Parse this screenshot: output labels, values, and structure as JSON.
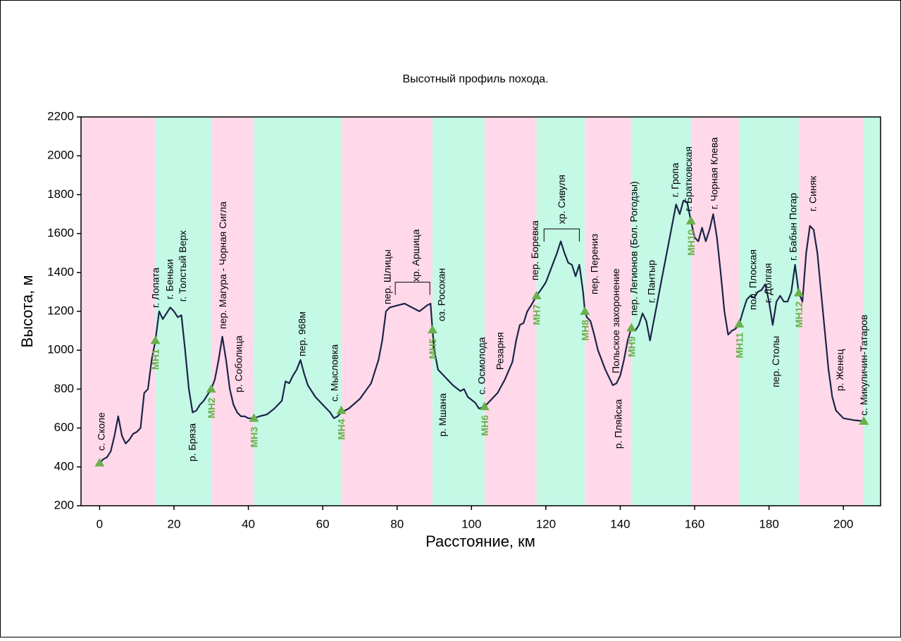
{
  "chart_data": {
    "type": "line",
    "title": "Высотный профиль похода.",
    "xlabel": "Расстояние, км",
    "ylabel": "Высота, м",
    "xlim": [
      -5,
      210
    ],
    "ylim": [
      200,
      2200
    ],
    "xticks": [
      0,
      20,
      40,
      60,
      80,
      100,
      120,
      140,
      160,
      180,
      200
    ],
    "yticks": [
      200,
      400,
      600,
      800,
      1000,
      1200,
      1400,
      1600,
      1800,
      2000,
      2200
    ],
    "color": "#1c2448",
    "band_colors": [
      "#ffd9ea",
      "#c4f9e6"
    ],
    "x": [
      0,
      1,
      2,
      3,
      4,
      5,
      6,
      7,
      8,
      9,
      10,
      11,
      12,
      13,
      14,
      15,
      16,
      17,
      18,
      19,
      20,
      21,
      22,
      23,
      24,
      25,
      26,
      27,
      28,
      29,
      30,
      31,
      32,
      33,
      34,
      35,
      36,
      37,
      38,
      39,
      40,
      41.5,
      43,
      45,
      47,
      49,
      50,
      51,
      52,
      53,
      54,
      55,
      56,
      58,
      60,
      62,
      63,
      64,
      65,
      67,
      70,
      73,
      75,
      76,
      77,
      78,
      80,
      82,
      84,
      86,
      88,
      89,
      89.5,
      90,
      91,
      93,
      95,
      97,
      98,
      99,
      101,
      102,
      103.5,
      105,
      107,
      109,
      111,
      112,
      113,
      114,
      115,
      116,
      117.5,
      119,
      120,
      121,
      122,
      123,
      124,
      125,
      126,
      127,
      128,
      129,
      130,
      130.5,
      131,
      132,
      133,
      134,
      135,
      136,
      137,
      138,
      139,
      140,
      141,
      142,
      143,
      144,
      145,
      146,
      147,
      148,
      149,
      150,
      151,
      152,
      153,
      154,
      155,
      156,
      157,
      158,
      159,
      160,
      161,
      162,
      163,
      164,
      165,
      166,
      167,
      168,
      169,
      170,
      171,
      172,
      173,
      174,
      175,
      176,
      177,
      178,
      179,
      180,
      181,
      182,
      183,
      184,
      185,
      186,
      187,
      188,
      189,
      190,
      191,
      192,
      193,
      194,
      195,
      196,
      197,
      198,
      200,
      203,
      205.5
    ],
    "values": [
      420,
      440,
      450,
      480,
      560,
      660,
      560,
      520,
      540,
      570,
      580,
      600,
      780,
      800,
      950,
      1050,
      1200,
      1160,
      1190,
      1220,
      1200,
      1170,
      1180,
      1000,
      800,
      680,
      690,
      720,
      740,
      770,
      800,
      850,
      950,
      1070,
      950,
      800,
      720,
      680,
      660,
      660,
      650,
      650,
      660,
      670,
      700,
      740,
      840,
      830,
      870,
      900,
      950,
      880,
      820,
      760,
      720,
      680,
      650,
      660,
      680,
      700,
      750,
      830,
      950,
      1050,
      1200,
      1220,
      1230,
      1240,
      1220,
      1200,
      1230,
      1240,
      1105,
      1000,
      900,
      860,
      820,
      790,
      800,
      760,
      730,
      700,
      710,
      740,
      780,
      850,
      940,
      1050,
      1130,
      1140,
      1200,
      1230,
      1280,
      1320,
      1350,
      1400,
      1450,
      1500,
      1560,
      1500,
      1450,
      1440,
      1380,
      1440,
      1300,
      1200,
      1170,
      1150,
      1080,
      1000,
      950,
      900,
      860,
      820,
      830,
      870,
      950,
      1050,
      1115,
      1100,
      1130,
      1190,
      1150,
      1050,
      1150,
      1250,
      1350,
      1450,
      1550,
      1650,
      1750,
      1700,
      1770,
      1760,
      1665,
      1580,
      1560,
      1630,
      1560,
      1620,
      1700,
      1580,
      1400,
      1200,
      1080,
      1100,
      1110,
      1135,
      1200,
      1260,
      1280,
      1270,
      1300,
      1310,
      1340,
      1250,
      1130,
      1250,
      1280,
      1250,
      1250,
      1300,
      1440,
      1295,
      1250,
      1500,
      1640,
      1620,
      1500,
      1300,
      1100,
      900,
      760,
      690,
      650,
      640,
      635
    ],
    "markers": {
      "color": "#6ab04c",
      "x": [
        0,
        15,
        30,
        41.5,
        65,
        89.5,
        103.5,
        117.5,
        130.5,
        143,
        159,
        172,
        188,
        205.5
      ],
      "values": [
        420,
        1050,
        800,
        650,
        690,
        1105,
        710,
        1280,
        1200,
        1115,
        1665,
        1135,
        1295,
        635
      ],
      "labels": [
        null,
        "МН1",
        "МН2",
        "МН3",
        "МН4",
        "МН5",
        "МН6",
        "МН7",
        "МН8",
        "МН9",
        "МН10",
        "МН11",
        "МН12",
        null
      ]
    },
    "annotations": [
      {
        "text": "с. Сколе",
        "x": 0.4,
        "y": 483
      },
      {
        "text": "г. Лопата",
        "x": 15,
        "y": 1218
      },
      {
        "text": "г. Беньки",
        "x": 18.8,
        "y": 1262
      },
      {
        "text": "г. Толстый Верх",
        "x": 22.3,
        "y": 1250
      },
      {
        "text": "р. Бряза",
        "x": 24.8,
        "y": 428
      },
      {
        "text": "пер. Магура - Чорная Сигла",
        "x": 33.1,
        "y": 1109
      },
      {
        "text": "р. Соболица",
        "x": 37.3,
        "y": 783
      },
      {
        "text": "пер. 968м",
        "x": 54.4,
        "y": 968
      },
      {
        "text": "с. Мысловка",
        "x": 63.1,
        "y": 736
      },
      {
        "text": "пер. Шлицы",
        "x": 77.3,
        "y": 1236
      },
      {
        "text": "хр. Аршица",
        "x": 85,
        "y": 1352
      },
      {
        "text": "оз. Росохан",
        "x": 91.9,
        "y": 1149
      },
      {
        "text": "р. Мшана",
        "x": 92.2,
        "y": 555
      },
      {
        "text": "с. Осмолода",
        "x": 102.7,
        "y": 772
      },
      {
        "text": "Резарня",
        "x": 107.6,
        "y": 899
      },
      {
        "text": "пер. Боревка",
        "x": 117,
        "y": 1359
      },
      {
        "text": "хр. Сивуля",
        "x": 124.2,
        "y": 1649
      },
      {
        "text": "пер. Перениз",
        "x": 133,
        "y": 1287
      },
      {
        "text": "Польское захоронение",
        "x": 138.8,
        "y": 881
      },
      {
        "text": "р. Пляйска",
        "x": 139.4,
        "y": 493
      },
      {
        "text": "пер. Легионов (Бол. Рогодзы)",
        "x": 143.6,
        "y": 1178
      },
      {
        "text": "г. Пантыр",
        "x": 148.3,
        "y": 1243
      },
      {
        "text": "г. Гропа",
        "x": 154.7,
        "y": 1787
      },
      {
        "text": "г. Братковская",
        "x": 158.3,
        "y": 1714
      },
      {
        "text": "г. Чорная Клева",
        "x": 165.2,
        "y": 1725
      },
      {
        "text": "пол. Плоская",
        "x": 175.6,
        "y": 1207
      },
      {
        "text": "г. Долгая",
        "x": 179.7,
        "y": 1243
      },
      {
        "text": "пер. Столы",
        "x": 181.8,
        "y": 809
      },
      {
        "text": "г. Бабын Погар",
        "x": 186.4,
        "y": 1461
      },
      {
        "text": "г. Синяк",
        "x": 191.7,
        "y": 1714
      },
      {
        "text": "р. Женец",
        "x": 199,
        "y": 790
      },
      {
        "text": "с. Микуличин-Татаров",
        "x": 205.5,
        "y": 664
      }
    ],
    "brackets": [
      {
        "x": [
          79.5,
          88.8
        ],
        "y": 1350
      },
      {
        "x": [
          119.5,
          129
        ],
        "y": 1624
      }
    ]
  }
}
